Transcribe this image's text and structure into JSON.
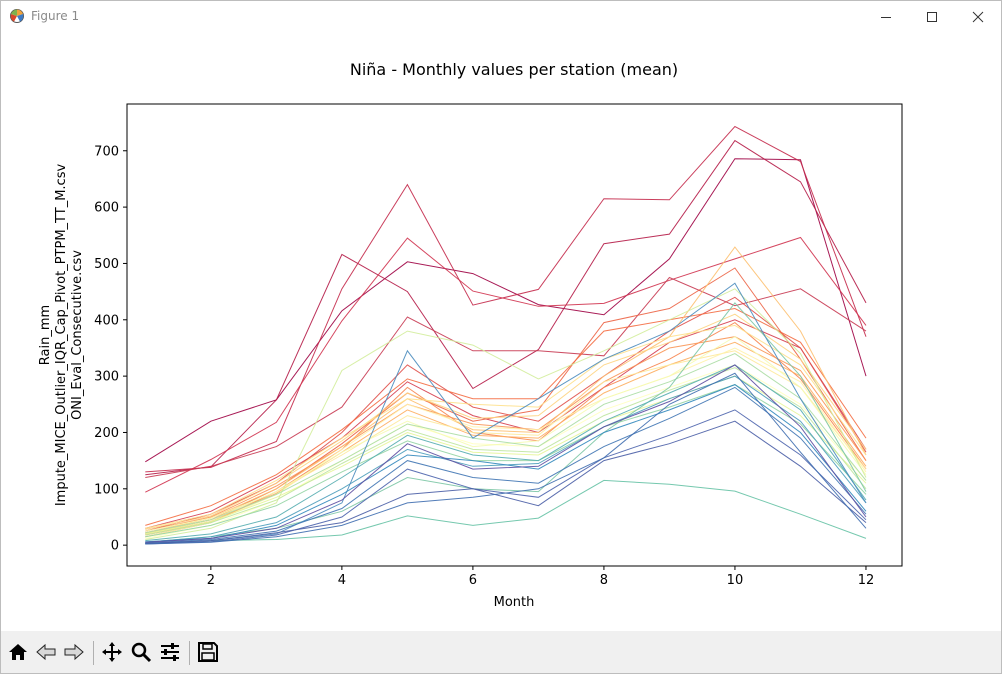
{
  "window": {
    "title": "Figure 1"
  },
  "toolbar": {
    "icons": [
      "home-icon",
      "back-icon",
      "forward-icon",
      "pan-icon",
      "zoom-icon",
      "configure-icon",
      "save-icon"
    ]
  },
  "colors": {
    "accent": "#1f1f1f"
  },
  "chart_data": {
    "type": "line",
    "title": "Niña - Monthly values per station (mean)",
    "xlabel": "Month",
    "ylabel_lines": [
      "Rain_mm",
      "Impute_MICE_Outlier_IQR_Cap_Pivot_PTPM_TT_M.csv",
      "ONI_Eval_Consecutive.csv"
    ],
    "xlim": [
      0.72,
      12.55
    ],
    "ylim": [
      -37,
      783
    ],
    "x": [
      1,
      2,
      3,
      4,
      5,
      6,
      7,
      8,
      9,
      10,
      11,
      12
    ],
    "x_ticks": [
      2,
      4,
      6,
      8,
      10,
      12
    ],
    "y_ticks": [
      0,
      100,
      200,
      300,
      400,
      500,
      600,
      700
    ],
    "grid": false,
    "legend": "none",
    "colormap": "Spectral",
    "series": [
      {
        "values": [
          148,
          220,
          258,
          416,
          503,
          482,
          427,
          409,
          508,
          686,
          684,
          300
        ],
        "color": "#9e0142"
      },
      {
        "values": [
          125,
          139,
          258,
          516,
          450,
          278,
          347,
          535,
          552,
          718,
          645,
          430
        ],
        "color": "#b51b47"
      },
      {
        "values": [
          130,
          138,
          184,
          455,
          640,
          426,
          454,
          615,
          613,
          743,
          681,
          370
        ],
        "color": "#c42a4b"
      },
      {
        "values": [
          94,
          152,
          218,
          398,
          545,
          451,
          424,
          429,
          470,
          508,
          546,
          390
        ],
        "color": "#d0334f"
      },
      {
        "values": [
          120,
          140,
          175,
          245,
          405,
          345,
          345,
          336,
          475,
          425,
          455,
          380
        ],
        "color": "#c83a52"
      },
      {
        "values": [
          30,
          60,
          120,
          190,
          290,
          230,
          200,
          280,
          360,
          400,
          350,
          170
        ],
        "color": "#d53e4f"
      },
      {
        "values": [
          25,
          55,
          110,
          200,
          320,
          245,
          220,
          300,
          380,
          440,
          350,
          165
        ],
        "color": "#e0504a"
      },
      {
        "values": [
          20,
          45,
          100,
          180,
          270,
          220,
          240,
          395,
          420,
          492,
          330,
          150
        ],
        "color": "#ec6445"
      },
      {
        "values": [
          35,
          70,
          125,
          205,
          295,
          260,
          260,
          380,
          400,
          420,
          360,
          190
        ],
        "color": "#f46d43"
      },
      {
        "values": [
          15,
          40,
          95,
          170,
          280,
          200,
          185,
          280,
          330,
          395,
          295,
          135
        ],
        "color": "#f7844e"
      },
      {
        "values": [
          25,
          50,
          105,
          175,
          250,
          215,
          205,
          290,
          350,
          370,
          310,
          150
        ],
        "color": "#f99656"
      },
      {
        "values": [
          18,
          42,
          92,
          165,
          240,
          195,
          190,
          270,
          320,
          360,
          300,
          140
        ],
        "color": "#fdae61"
      },
      {
        "values": [
          22,
          48,
          100,
          175,
          260,
          205,
          200,
          300,
          370,
          529,
          380,
          160
        ],
        "color": "#fdc070"
      },
      {
        "values": [
          28,
          52,
          110,
          185,
          270,
          225,
          230,
          320,
          360,
          410,
          330,
          170
        ],
        "color": "#fed481"
      },
      {
        "values": [
          30,
          55,
          115,
          190,
          260,
          250,
          245,
          330,
          370,
          390,
          320,
          160
        ],
        "color": "#fee08b"
      },
      {
        "values": [
          20,
          45,
          95,
          160,
          230,
          200,
          195,
          290,
          320,
          345,
          280,
          135
        ],
        "color": "#fee99a"
      },
      {
        "values": [
          15,
          40,
          90,
          170,
          250,
          210,
          205,
          260,
          300,
          350,
          290,
          130
        ],
        "color": "#fff2aa"
      },
      {
        "values": [
          12,
          35,
          80,
          150,
          215,
          180,
          175,
          240,
          280,
          320,
          250,
          115
        ],
        "color": "#ffffbf"
      },
      {
        "values": [
          25,
          48,
          95,
          165,
          220,
          175,
          185,
          260,
          300,
          370,
          280,
          125
        ],
        "color": "#f5fbb2"
      },
      {
        "values": [
          20,
          42,
          85,
          140,
          200,
          165,
          160,
          220,
          260,
          300,
          230,
          110
        ],
        "color": "#e6f598"
      },
      {
        "values": [
          10,
          30,
          75,
          310,
          380,
          355,
          295,
          345,
          400,
          455,
          340,
          120
        ],
        "color": "#d3ed9c"
      },
      {
        "values": [
          18,
          40,
          80,
          145,
          205,
          170,
          165,
          230,
          275,
          315,
          245,
          100
        ],
        "color": "#bfe5a0"
      },
      {
        "values": [
          22,
          45,
          90,
          150,
          215,
          190,
          175,
          250,
          290,
          340,
          260,
          115
        ],
        "color": "#abdda4"
      },
      {
        "values": [
          15,
          35,
          70,
          130,
          185,
          150,
          150,
          210,
          245,
          285,
          215,
          90
        ],
        "color": "#94d4a4"
      },
      {
        "values": [
          5,
          15,
          30,
          60,
          120,
          100,
          95,
          200,
          280,
          430,
          300,
          95
        ],
        "color": "#7cc6a5"
      },
      {
        "values": [
          3,
          8,
          10,
          18,
          52,
          35,
          48,
          115,
          108,
          96,
          55,
          12
        ],
        "color": "#66c2a5"
      },
      {
        "values": [
          8,
          20,
          50,
          120,
          195,
          160,
          150,
          220,
          270,
          320,
          240,
          80
        ],
        "color": "#55adb0"
      },
      {
        "values": [
          5,
          15,
          40,
          100,
          170,
          140,
          145,
          210,
          260,
          300,
          220,
          75
        ],
        "color": "#4d9dbb"
      },
      {
        "values": [
          3,
          8,
          20,
          75,
          345,
          190,
          260,
          330,
          380,
          465,
          260,
          75
        ],
        "color": "#4a8cbe"
      },
      {
        "values": [
          6,
          12,
          35,
          90,
          160,
          150,
          135,
          200,
          240,
          285,
          200,
          60
        ],
        "color": "#3288bd"
      },
      {
        "values": [
          4,
          10,
          25,
          65,
          150,
          120,
          110,
          175,
          225,
          280,
          190,
          55
        ],
        "color": "#4075b4"
      },
      {
        "values": [
          2,
          6,
          18,
          50,
          135,
          100,
          85,
          155,
          195,
          240,
          160,
          45
        ],
        "color": "#4d64ad"
      },
      {
        "values": [
          5,
          12,
          30,
          80,
          180,
          135,
          140,
          210,
          255,
          320,
          210,
          50
        ],
        "color": "#5e4fa2"
      },
      {
        "values": [
          3,
          8,
          22,
          40,
          90,
          100,
          70,
          150,
          180,
          220,
          140,
          40
        ],
        "color": "#4a5ea6"
      },
      {
        "values": [
          2,
          5,
          15,
          35,
          75,
          85,
          100,
          155,
          250,
          305,
          165,
          30
        ],
        "color": "#3f6eb0"
      }
    ]
  }
}
